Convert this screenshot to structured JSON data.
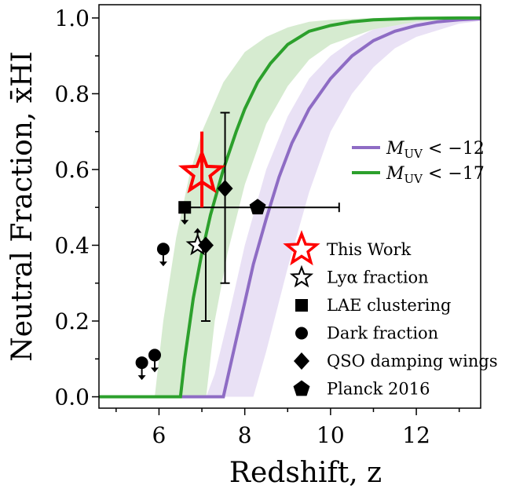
{
  "chart_data": {
    "type": "scatter",
    "xlabel": "Redshift, z",
    "ylabel": "Neutral Fraction, x̄HI",
    "xlim": [
      4.6,
      13.5
    ],
    "ylim": [
      -0.03,
      1.035
    ],
    "xticks": [
      6,
      8,
      10,
      12
    ],
    "yticks": [
      0.0,
      0.2,
      0.4,
      0.6,
      0.8,
      1.0
    ],
    "grid": false,
    "legend_position": "right-middle",
    "models": [
      {
        "name": "M_UV < −12",
        "label_main": "M",
        "label_sub": "UV",
        "label_rest": " < −12",
        "color": "#8e6cc4",
        "band_color": "#e5dcf3",
        "x": [
          4.6,
          7.5,
          7.6,
          7.8,
          8.0,
          8.2,
          8.5,
          8.8,
          9.1,
          9.5,
          10.0,
          10.5,
          11.0,
          11.5,
          12.0,
          12.5,
          13.0,
          13.5
        ],
        "y": [
          0.0,
          0.0,
          0.05,
          0.15,
          0.25,
          0.35,
          0.47,
          0.58,
          0.67,
          0.76,
          0.84,
          0.9,
          0.94,
          0.965,
          0.98,
          0.99,
          0.995,
          0.998
        ],
        "band_x": [
          7.1,
          7.3,
          7.6,
          8.0,
          8.5,
          9.0,
          9.5,
          10.0,
          10.5,
          11.0,
          12.0,
          13.0,
          13.5
        ],
        "band_upper": [
          0.0,
          0.06,
          0.2,
          0.4,
          0.6,
          0.74,
          0.84,
          0.9,
          0.94,
          0.97,
          0.99,
          0.998,
          1.0
        ],
        "band_lower_x": [
          7.1,
          8.2,
          8.5,
          9.0,
          9.5,
          10.0,
          10.5,
          11.0,
          11.5,
          12.0,
          13.0,
          13.5
        ],
        "band_lower": [
          0.0,
          0.0,
          0.12,
          0.34,
          0.54,
          0.7,
          0.8,
          0.87,
          0.92,
          0.95,
          0.985,
          0.992
        ]
      },
      {
        "name": "M_UV < −17",
        "label_main": "M",
        "label_sub": "UV",
        "label_rest": " < −17",
        "color": "#2ca02c",
        "band_color": "#cfe8c8",
        "x": [
          4.6,
          6.5,
          6.6,
          6.8,
          7.0,
          7.2,
          7.5,
          7.8,
          8.0,
          8.3,
          8.6,
          9.0,
          9.5,
          10.0,
          10.5,
          11.0,
          12.0,
          13.0,
          13.5
        ],
        "y": [
          0.0,
          0.0,
          0.1,
          0.26,
          0.38,
          0.48,
          0.6,
          0.7,
          0.76,
          0.83,
          0.88,
          0.93,
          0.965,
          0.98,
          0.99,
          0.995,
          0.999,
          1.0,
          1.0
        ],
        "band_x": [
          5.9,
          6.1,
          6.4,
          6.7,
          7.0,
          7.5,
          8.0,
          8.5,
          9.0,
          9.5,
          10.0,
          11.0,
          12.0,
          13.5
        ],
        "band_upper": [
          0.0,
          0.2,
          0.42,
          0.58,
          0.7,
          0.83,
          0.91,
          0.95,
          0.975,
          0.99,
          0.995,
          1.0,
          1.0,
          1.0
        ],
        "band_lower_x": [
          5.9,
          7.1,
          7.3,
          7.6,
          8.0,
          8.5,
          9.0,
          9.5,
          10.0,
          11.0,
          12.0,
          13.5
        ],
        "band_lower": [
          0.0,
          0.0,
          0.2,
          0.38,
          0.56,
          0.72,
          0.82,
          0.89,
          0.93,
          0.97,
          0.99,
          1.0
        ]
      }
    ],
    "this_work": {
      "label": "This Work",
      "x": 7.0,
      "y": 0.59,
      "yerr_lo": 0.09,
      "yerr_hi": 0.11,
      "color": "#ff0000"
    },
    "datasets": [
      {
        "label": "Lyα fraction",
        "marker": "star-open",
        "points": [
          {
            "x": 6.9,
            "y": 0.4,
            "arrow": "up"
          }
        ]
      },
      {
        "label": "LAE clustering",
        "marker": "square",
        "points": [
          {
            "x": 6.6,
            "y": 0.5,
            "arrow": "down"
          }
        ]
      },
      {
        "label": "Dark fraction",
        "marker": "circle",
        "points": [
          {
            "x": 5.6,
            "y": 0.09,
            "arrow": "down"
          },
          {
            "x": 5.9,
            "y": 0.11,
            "arrow": "down"
          },
          {
            "x": 6.1,
            "y": 0.39,
            "arrow": "down"
          }
        ]
      },
      {
        "label": "QSO damping wings",
        "marker": "diamond",
        "points": [
          {
            "x": 7.09,
            "y": 0.4,
            "yerr_lo": 0.2,
            "yerr_hi": 0.0
          },
          {
            "x": 7.54,
            "y": 0.55,
            "yerr_lo": 0.25,
            "yerr_hi": 0.2
          }
        ]
      },
      {
        "label": "Planck 2016",
        "marker": "pentagon",
        "points": [
          {
            "x": 8.3,
            "y": 0.5,
            "xerr_lo": 1.6,
            "xerr_hi": 1.9
          }
        ]
      }
    ]
  }
}
